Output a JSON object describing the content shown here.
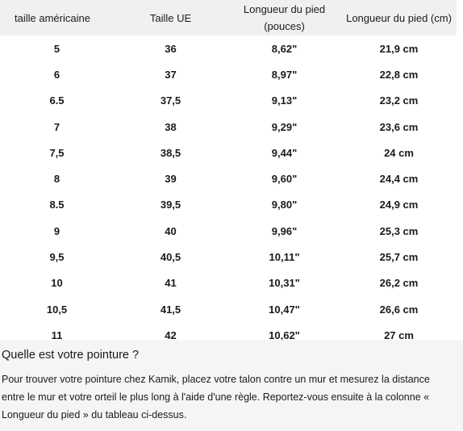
{
  "table": {
    "headers": [
      "taille américaine",
      "Taille UE",
      "Longueur du pied (pouces)",
      "Longueur du pied (cm)"
    ],
    "rows": [
      [
        "5",
        "36",
        "8,62\"",
        "21,9 cm"
      ],
      [
        "6",
        "37",
        "8,97\"",
        "22,8 cm"
      ],
      [
        "6.5",
        "37,5",
        "9,13\"",
        "23,2 cm"
      ],
      [
        "7",
        "38",
        "9,29\"",
        "23,6 cm"
      ],
      [
        "7,5",
        "38,5",
        "9,44\"",
        "24 cm"
      ],
      [
        "8",
        "39",
        "9,60\"",
        "24,4 cm"
      ],
      [
        "8.5",
        "39,5",
        "9,80\"",
        "24,9 cm"
      ],
      [
        "9",
        "40",
        "9,96\"",
        "25,3 cm"
      ],
      [
        "9,5",
        "40,5",
        "10,11\"",
        "25,7 cm"
      ],
      [
        "10",
        "41",
        "10,31\"",
        "26,2 cm"
      ],
      [
        "10,5",
        "41,5",
        "10,47\"",
        "26,6 cm"
      ],
      [
        "11",
        "42",
        "10,62\"",
        "27 cm"
      ]
    ]
  },
  "info": {
    "title": "Quelle est votre pointure ?",
    "text": "Pour trouver votre pointure chez Kamik, placez votre talon contre un mur et mesurez la distance entre le mur et votre orteil le plus long à l'aide d'une règle. Reportez-vous ensuite à la colonne « Longueur du pied » du tableau ci-dessus."
  }
}
